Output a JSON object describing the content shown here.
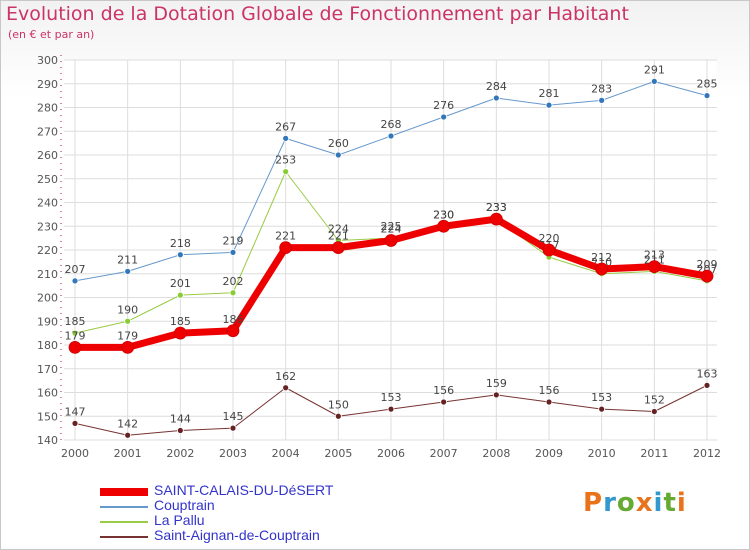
{
  "title": "Evolution de la Dotation Globale de Fonctionnement par Habitant",
  "subtitle": "(en € et par an)",
  "logo": {
    "text": "Proxiti",
    "letter_colors": [
      "#e8731a",
      "#3399cc",
      "#66aa33",
      "#e8731a",
      "#3399cc",
      "#66aa33",
      "#e8731a"
    ]
  },
  "chart_data": {
    "type": "line",
    "x": [
      "2000",
      "2001",
      "2002",
      "2003",
      "2004",
      "2005",
      "2006",
      "2007",
      "2008",
      "2009",
      "2010",
      "2011",
      "2012"
    ],
    "ylim": [
      140,
      300
    ],
    "yticks": [
      140,
      150,
      160,
      170,
      180,
      190,
      200,
      210,
      220,
      230,
      240,
      250,
      260,
      270,
      280,
      290,
      300
    ],
    "grid": true,
    "legend_position": "bottom-left",
    "series": [
      {
        "name": "Couptrain",
        "color": "#6699cc",
        "marker": "#3377bb",
        "width": 1,
        "values": [
          207,
          211,
          218,
          219,
          267,
          260,
          268,
          276,
          284,
          281,
          283,
          291,
          285
        ]
      },
      {
        "name": "La Pallu",
        "color": "#99cc44",
        "marker": "#88cc33",
        "width": 1,
        "values": [
          185,
          190,
          201,
          202,
          253,
          224,
          225,
          230,
          233,
          217,
          210,
          211,
          207
        ]
      },
      {
        "name": "Saint-Aignan-de-Couptrain",
        "color": "#773333",
        "marker": "#662222",
        "width": 1,
        "values": [
          147,
          142,
          144,
          145,
          162,
          150,
          153,
          156,
          159,
          156,
          153,
          152,
          163
        ]
      },
      {
        "name": "SAINT-CALAIS-DU-DéSERT",
        "color": "#ee0000",
        "marker": "#ee0000",
        "width": 7,
        "values": [
          179,
          179,
          185,
          186,
          221,
          221,
          224,
          230,
          233,
          220,
          212,
          213,
          209
        ]
      }
    ],
    "legend_order": [
      "SAINT-CALAIS-DU-DéSERT",
      "Couptrain",
      "La Pallu",
      "Saint-Aignan-de-Couptrain"
    ]
  }
}
